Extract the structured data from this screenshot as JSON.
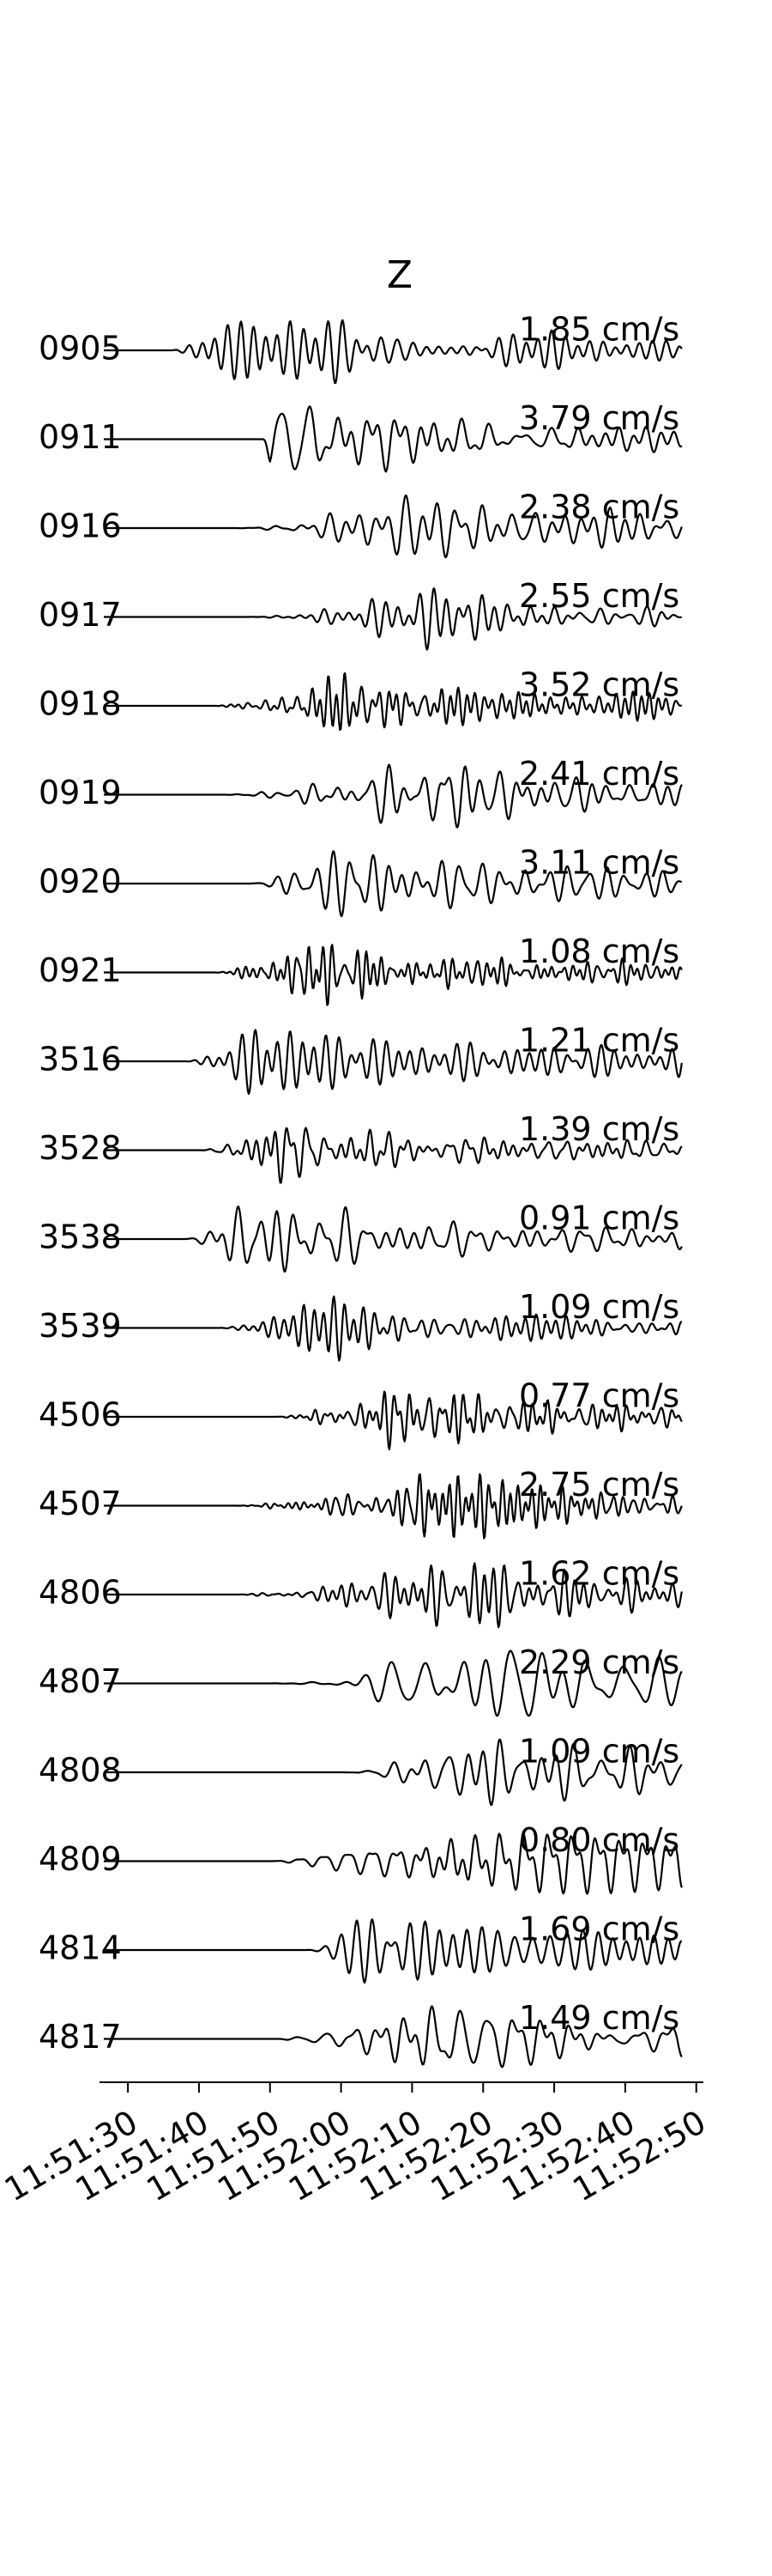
{
  "chart_data": {
    "type": "line",
    "title": "Z",
    "xlabel": "",
    "ylabel": "",
    "x_unit": "time (HH:MM:SS)",
    "xlim": [
      "11:51:26",
      "11:52:51"
    ],
    "x_ticks": [
      "11:51:30",
      "11:51:40",
      "11:51:50",
      "11:52:00",
      "11:52:10",
      "11:52:20",
      "11:52:30",
      "11:52:40",
      "11:52:50"
    ],
    "trace_end": "11:52:48",
    "grid": false,
    "legend": "none",
    "line_color": "#000000",
    "series": [
      {
        "name": "0905",
        "peak_amplitude": "1.85 cm/s",
        "onset": "11:51:36",
        "peak_time": "11:51:47",
        "dominant_period_s": 2.4,
        "relative_peak": 1.0
      },
      {
        "name": "0911",
        "peak_amplitude": "3.79 cm/s",
        "onset": "11:51:49",
        "peak_time": "11:51:50",
        "dominant_period_s": 3.0,
        "relative_peak": 1.0
      },
      {
        "name": "0916",
        "peak_amplitude": "2.38 cm/s",
        "onset": "11:51:45",
        "peak_time": "11:52:12",
        "dominant_period_s": 2.8,
        "relative_peak": 1.0
      },
      {
        "name": "0917",
        "peak_amplitude": "2.55 cm/s",
        "onset": "11:51:46",
        "peak_time": "11:52:15",
        "dominant_period_s": 2.6,
        "relative_peak": 1.0
      },
      {
        "name": "0918",
        "peak_amplitude": "3.52 cm/s",
        "onset": "11:51:42",
        "peak_time": "11:52:00",
        "dominant_period_s": 1.4,
        "relative_peak": 1.0
      },
      {
        "name": "0919",
        "peak_amplitude": "2.41 cm/s",
        "onset": "11:51:43",
        "peak_time": "11:52:14",
        "dominant_period_s": 2.8,
        "relative_peak": 1.0
      },
      {
        "name": "0920",
        "peak_amplitude": "3.11 cm/s",
        "onset": "11:51:47",
        "peak_time": "11:52:01",
        "dominant_period_s": 2.6,
        "relative_peak": 1.0
      },
      {
        "name": "0921",
        "peak_amplitude": "1.08 cm/s",
        "onset": "11:51:42",
        "peak_time": "11:51:54",
        "dominant_period_s": 1.6,
        "relative_peak": 1.0
      },
      {
        "name": "3516",
        "peak_amplitude": "1.21 cm/s",
        "onset": "11:51:38",
        "peak_time": "11:51:49",
        "dominant_period_s": 2.6,
        "relative_peak": 1.0
      },
      {
        "name": "3528",
        "peak_amplitude": "1.39 cm/s",
        "onset": "11:51:40",
        "peak_time": "11:51:51",
        "dominant_period_s": 2.0,
        "relative_peak": 1.0
      },
      {
        "name": "3538",
        "peak_amplitude": "0.91 cm/s",
        "onset": "11:51:38",
        "peak_time": "11:51:47",
        "dominant_period_s": 2.6,
        "relative_peak": 1.0
      },
      {
        "name": "3539",
        "peak_amplitude": "1.09 cm/s",
        "onset": "11:51:42",
        "peak_time": "11:52:00",
        "dominant_period_s": 1.6,
        "relative_peak": 1.0
      },
      {
        "name": "4506",
        "peak_amplitude": "0.77 cm/s",
        "onset": "11:51:50",
        "peak_time": "11:52:10",
        "dominant_period_s": 1.7,
        "relative_peak": 1.0
      },
      {
        "name": "4507",
        "peak_amplitude": "2.75 cm/s",
        "onset": "11:51:45",
        "peak_time": "11:52:14",
        "dominant_period_s": 1.6,
        "relative_peak": 1.0
      },
      {
        "name": "4806",
        "peak_amplitude": "1.62 cm/s",
        "onset": "11:51:45",
        "peak_time": "11:52:17",
        "dominant_period_s": 2.0,
        "relative_peak": 1.0
      },
      {
        "name": "4807",
        "peak_amplitude": "2.29 cm/s",
        "onset": "11:51:50",
        "peak_time": "11:52:24",
        "dominant_period_s": 3.6,
        "relative_peak": 1.0
      },
      {
        "name": "4808",
        "peak_amplitude": "1.09 cm/s",
        "onset": "11:52:00",
        "peak_time": "11:52:22",
        "dominant_period_s": 3.0,
        "relative_peak": 1.0
      },
      {
        "name": "4809",
        "peak_amplitude": "0.80 cm/s",
        "onset": "11:51:50",
        "peak_time": "11:52:16",
        "dominant_period_s": 2.6,
        "relative_peak": 1.0
      },
      {
        "name": "4814",
        "peak_amplitude": "1.69 cm/s",
        "onset": "11:51:55",
        "peak_time": "11:52:06",
        "dominant_period_s": 2.8,
        "relative_peak": 1.0
      },
      {
        "name": "4817",
        "peak_amplitude": "1.49 cm/s",
        "onset": "11:51:50",
        "peak_time": "11:52:14",
        "dominant_period_s": 2.6,
        "relative_peak": 1.0
      }
    ]
  }
}
